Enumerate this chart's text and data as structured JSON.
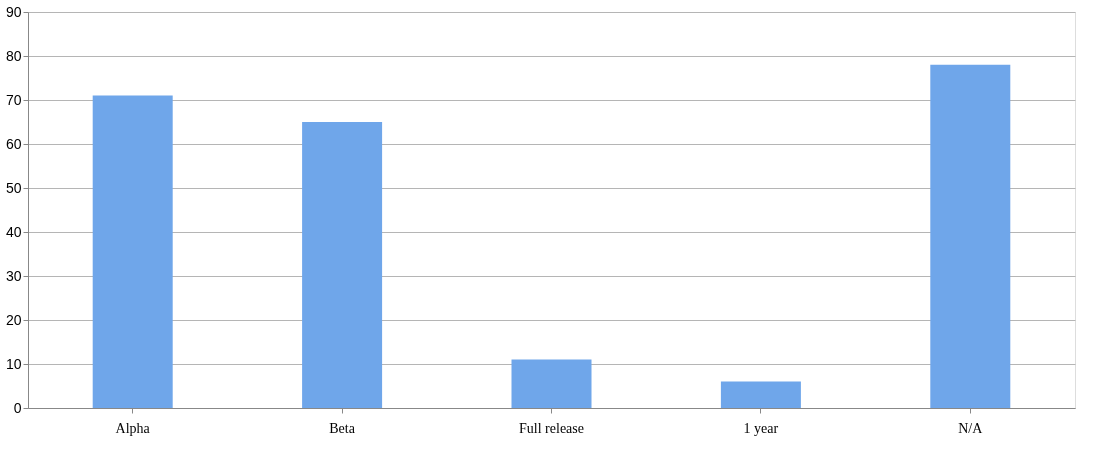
{
  "chart_data": {
    "type": "bar",
    "categories": [
      "Alpha",
      "Beta",
      "Full release",
      "1 year",
      "N/A"
    ],
    "values": [
      71,
      65,
      11,
      6,
      78
    ],
    "color": "#6fa6ea",
    "ylim": [
      0,
      90
    ],
    "yticks": [
      0,
      10,
      20,
      30,
      40,
      50,
      60,
      70,
      80,
      90
    ],
    "grid": "y"
  }
}
